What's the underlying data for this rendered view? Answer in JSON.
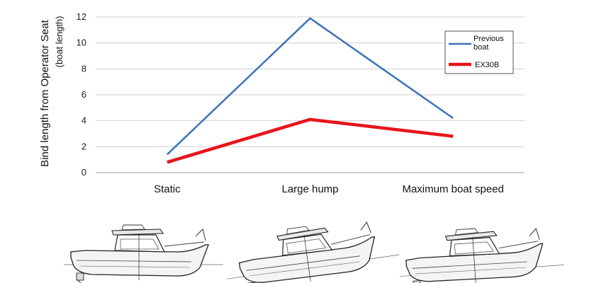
{
  "chart_data": {
    "type": "line",
    "ylabel": "Bind length from Operator Seat",
    "ylabel_sub": "(boat length)",
    "categories": [
      "Static",
      "Large hump",
      "Maximum boat speed"
    ],
    "ylim": [
      0,
      12
    ],
    "yticks": [
      "0",
      "2",
      "4",
      "6",
      "8",
      "10",
      "12"
    ],
    "grid": true,
    "legend_position": "top-right",
    "series": [
      {
        "name": "Previous boat",
        "color": "#3a73b8",
        "values": [
          1.4,
          11.9,
          4.2
        ]
      },
      {
        "name": "EX30B",
        "color": "#e8141c",
        "values": [
          0.8,
          4.1,
          2.8
        ]
      }
    ]
  },
  "illustrations": [
    {
      "icon": "boat-profile-static-icon"
    },
    {
      "icon": "boat-profile-large-hump-icon"
    },
    {
      "icon": "boat-profile-maximum-speed-icon"
    }
  ]
}
